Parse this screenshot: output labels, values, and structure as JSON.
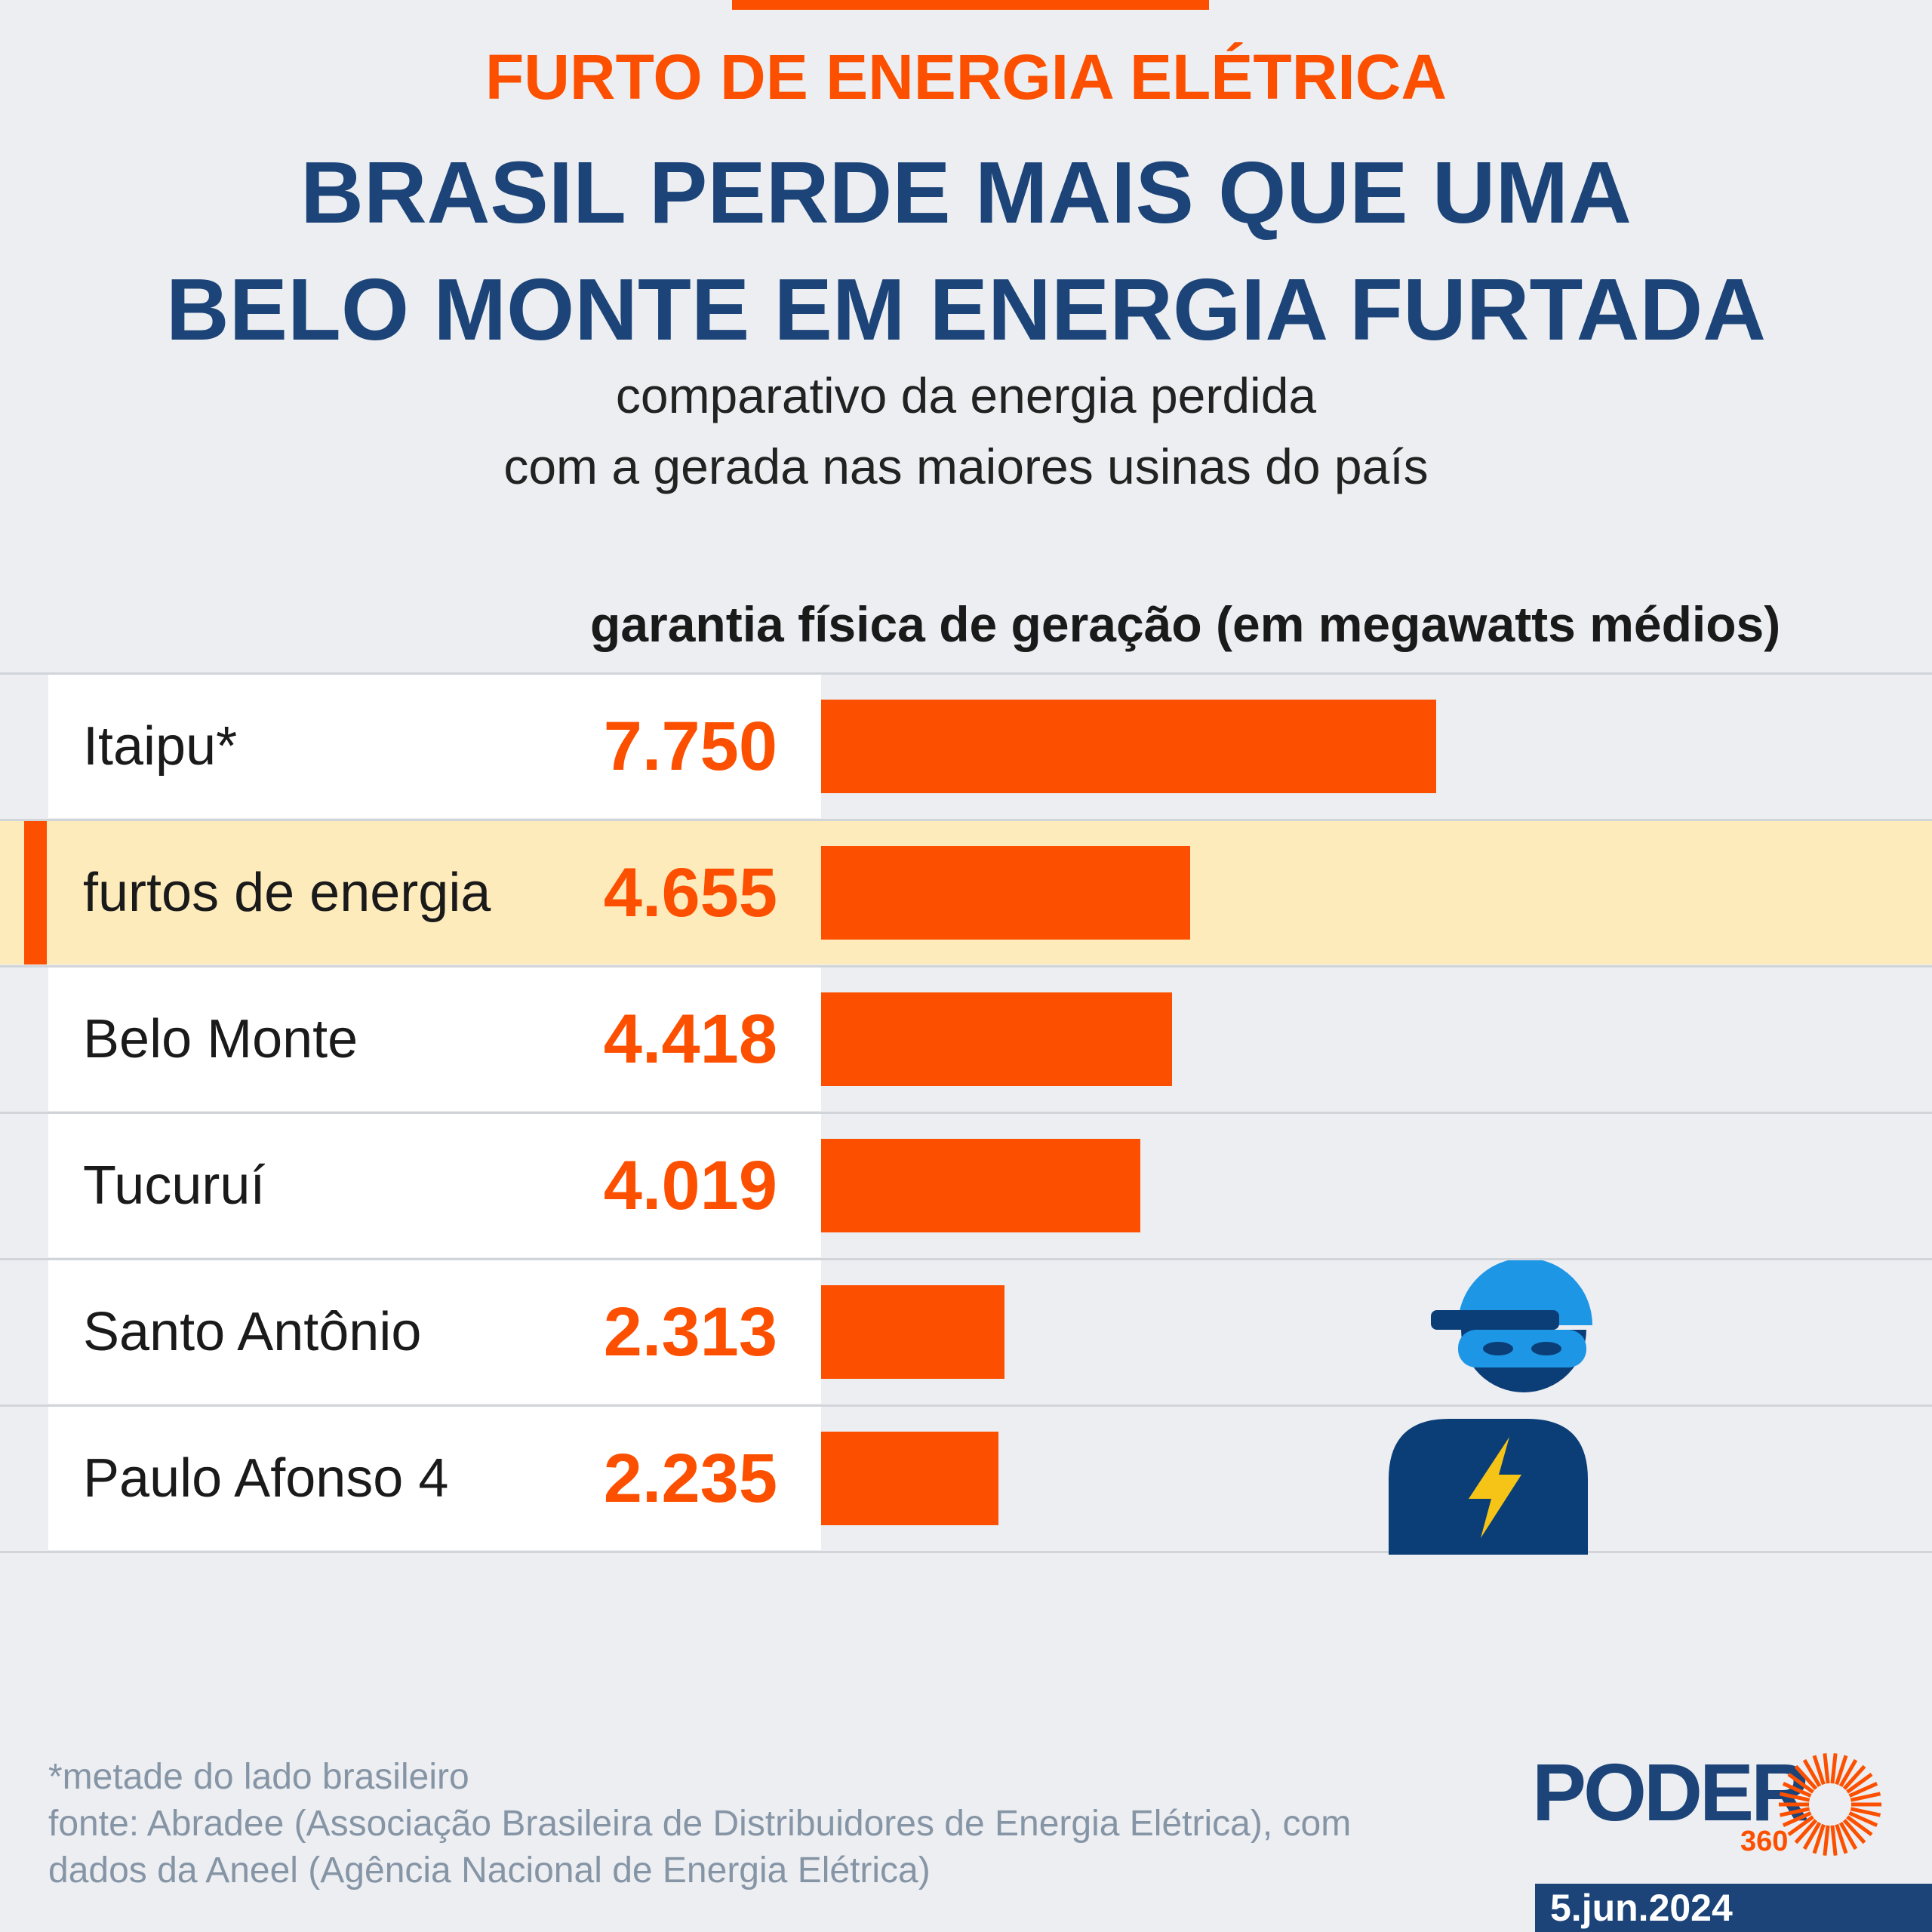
{
  "kicker": "FURTO DE ENERGIA ELÉTRICA",
  "headline": {
    "line1": "BRASIL PERDE MAIS QUE UMA",
    "line2": "BELO MONTE EM ENERGIA FURTADA"
  },
  "subtitle": {
    "line1": "comparativo da energia perdida",
    "line2": "com a gerada nas maiores usinas do país"
  },
  "colors": {
    "accent": "#fc5000",
    "headline": "#1c4478",
    "highlight_row": "#feebbc",
    "background": "#eceef1",
    "thief_hat": "#1e96e6",
    "thief_body": "#0b3e77",
    "bolt": "#f5c417"
  },
  "chart_data": {
    "type": "bar",
    "orientation": "horizontal",
    "title": "garantia física de geração (em megawatts médios)",
    "categories": [
      "Itaipu*",
      "furtos de energia",
      "Belo Monte",
      "Tucuruí",
      "Santo Antônio",
      "Paulo Afonso 4"
    ],
    "values": [
      7750,
      4655,
      4418,
      4019,
      2313,
      2235
    ],
    "value_labels": [
      "7.750",
      "4.655",
      "4.418",
      "4.019",
      "2.313",
      "2.235"
    ],
    "highlighted_category": "furtos de energia",
    "xlim": [
      0,
      14000
    ],
    "grid": false,
    "legend": "none"
  },
  "illustration": {
    "icon": "thief-icon",
    "bolt_icon": "lightning-bolt-icon"
  },
  "footnotes": {
    "line1": "*metade do lado brasileiro",
    "line2": "fonte: Abradee (Associação Brasileira de Distribuidores de Energia Elétrica), com",
    "line3": "dados da Aneel (Agência Nacional de Energia Elétrica)"
  },
  "brand": {
    "name": "PODER",
    "suffix": "360",
    "date": "5.jun.2024"
  }
}
